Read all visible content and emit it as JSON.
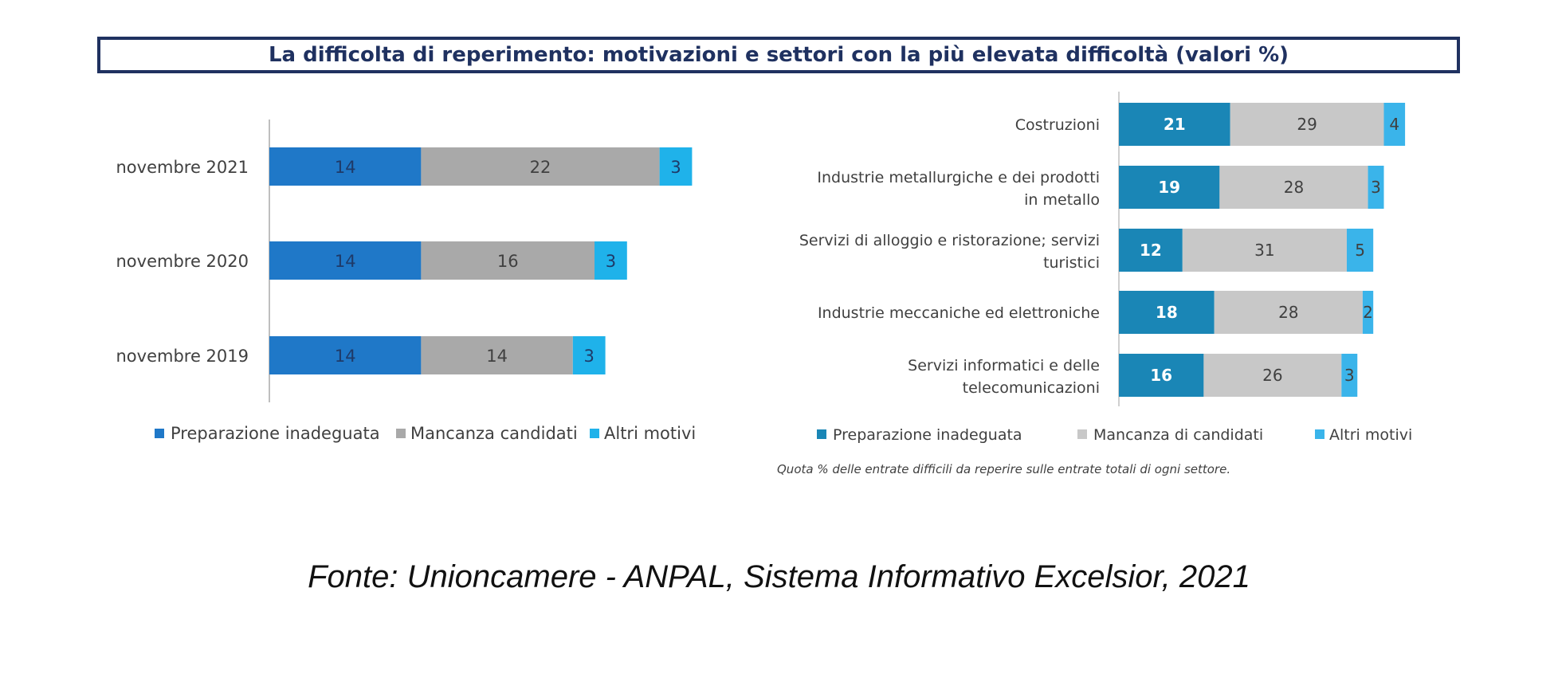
{
  "title": "La difficolta di reperimento: motivazioni e settori con la più elevata difficoltà (valori %)",
  "note": "Quota % delle entrate difficili da reperire sulle entrate totali di ogni settore.",
  "source": "Fonte: Unioncamere - ANPAL, Sistema Informativo Excelsior, 2021",
  "colors": {
    "left": [
      "#1f78c8",
      "#a9a9a9",
      "#1fb2ea"
    ],
    "right": [
      "#1a86b6",
      "#c8c8c8",
      "#3ab4ea"
    ]
  },
  "chart_data": [
    {
      "type": "bar",
      "orientation": "horizontal",
      "stacked": true,
      "categories": [
        "novembre 2021",
        "novembre 2020",
        "novembre 2019"
      ],
      "series": [
        {
          "name": "Preparazione inadeguata",
          "values": [
            14,
            14,
            14
          ]
        },
        {
          "name": "Mancanza candidati",
          "values": [
            22,
            16,
            14
          ]
        },
        {
          "name": "Altri motivi",
          "values": [
            3,
            3,
            3
          ]
        }
      ],
      "legend": "bottom"
    },
    {
      "type": "bar",
      "orientation": "horizontal",
      "stacked": true,
      "categories": [
        [
          "Costruzioni"
        ],
        [
          "Industrie metallurgiche e dei prodotti",
          "in metallo"
        ],
        [
          "Servizi di alloggio e ristorazione; servizi",
          "turistici"
        ],
        [
          "Industrie meccaniche ed elettroniche"
        ],
        [
          "Servizi informatici e delle",
          "telecomunicazioni"
        ]
      ],
      "series": [
        {
          "name": "Preparazione inadeguata",
          "values": [
            21,
            19,
            12,
            18,
            16
          ]
        },
        {
          "name": "Mancanza di candidati",
          "values": [
            29,
            28,
            31,
            28,
            26
          ]
        },
        {
          "name": "Altri motivi",
          "values": [
            4,
            3,
            5,
            2,
            3
          ]
        }
      ],
      "legend": "bottom"
    }
  ]
}
